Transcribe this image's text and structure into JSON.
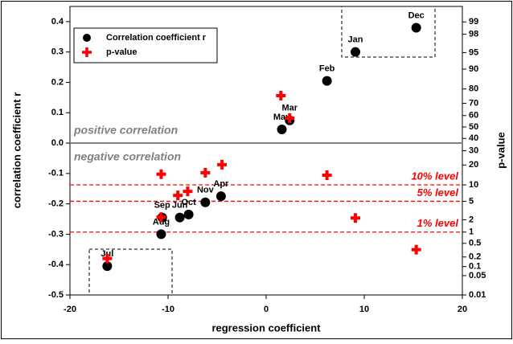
{
  "chart_data": {
    "type": "scatter",
    "xlabel": "regression coefficient",
    "ylabel": "correlation coefficient r",
    "y2label": "p-value",
    "xlim": [
      -20,
      20
    ],
    "xticks": [
      -20,
      -10,
      0,
      10,
      20
    ],
    "ylim": [
      -0.5,
      0.45
    ],
    "yticks": [
      -0.5,
      -0.4,
      -0.3,
      -0.2,
      -0.1,
      {
        "value": 0,
        "label": "0.0"
      },
      0.1,
      0.2,
      0.3,
      0.4
    ],
    "y2scale": "probit",
    "y2lim": [
      0.01,
      99.62
    ],
    "y2ticks": [
      99,
      98,
      95,
      90,
      80,
      70,
      60,
      50,
      40,
      30,
      20,
      10,
      5,
      2,
      1,
      0.5,
      0.2,
      0.1,
      0.05,
      0.01
    ],
    "legend": "upper left",
    "zero_line": {
      "value": 0,
      "color": "#808080"
    },
    "annotations": [
      "positive correlation",
      "negative correlation"
    ],
    "reference_lines": [
      {
        "value": 10,
        "label": "10% level",
        "axis": "y2",
        "color": "#ff0000"
      },
      {
        "value": 5,
        "label": "5% level",
        "axis": "y2",
        "color": "#ff0000"
      },
      {
        "value": 1,
        "label": "1% level",
        "axis": "y2",
        "color": "#ff0000"
      }
    ],
    "series": [
      {
        "name": "Correlation coefficient r",
        "color": "#000000",
        "marker": "circle",
        "x": [
          15.3,
          9.1,
          6.2,
          2.4,
          1.6,
          -4.6,
          -6.2,
          -7.9,
          -8.8,
          -10.6,
          -10.7,
          -16.2
        ],
        "values": [
          0.38,
          0.3,
          0.205,
          0.075,
          0.045,
          -0.175,
          -0.195,
          -0.235,
          -0.245,
          -0.245,
          -0.3,
          -0.405
        ],
        "labels": [
          "Dec",
          "Jan",
          "Feb",
          "Mar",
          "May",
          "Apr",
          "Nov",
          "Oct",
          "Jun",
          "Sep",
          "Aug",
          "Jul"
        ]
      },
      {
        "name": "p-value",
        "color": "#ff0000",
        "marker": "cross",
        "axis": "y2",
        "x": [
          15.3,
          9.1,
          6.2,
          2.4,
          1.5,
          -4.5,
          -6.2,
          -8,
          -9,
          -10.7,
          -10.7,
          -16.2
        ],
        "values": [
          0.33,
          2.2,
          14.3,
          57.8,
          75.6,
          20.2,
          15.6,
          7.7,
          6.5,
          14.8,
          2.3,
          0.18
        ]
      }
    ]
  }
}
